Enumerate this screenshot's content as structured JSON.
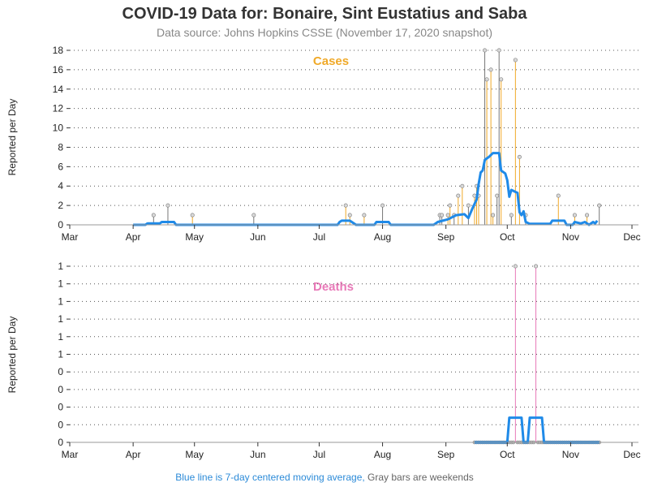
{
  "title": "COVID-19 Data for: Bonaire, Sint Eustatius and Saba",
  "subtitle": "Data source: Johns Hopkins CSSE (November 17, 2020 snapshot)",
  "footnote": {
    "blue": "Blue line is 7-day centered moving average,",
    "gray": " Gray bars are weekends"
  },
  "colors": {
    "cases": "#f0a928",
    "deaths": "#e879b8",
    "average": "#1f8ae8",
    "weekend": "#777777",
    "grid": "#555555"
  },
  "chart_data": [
    {
      "type": "line",
      "title": "Cases",
      "ylabel": "Reported per Day",
      "x_tick_labels": [
        "Mar",
        "Apr",
        "May",
        "Jun",
        "Jul",
        "Aug",
        "Sep",
        "Oct",
        "Nov",
        "Dec"
      ],
      "x_tick_dates": [
        "2020-03-01",
        "2020-04-01",
        "2020-05-01",
        "2020-06-01",
        "2020-07-01",
        "2020-08-01",
        "2020-09-01",
        "2020-10-01",
        "2020-11-01",
        "2020-12-01"
      ],
      "y_ticks": [
        "0",
        "2",
        "4",
        "6",
        "8",
        "10",
        "12",
        "14",
        "16",
        "18"
      ],
      "ylim": [
        0,
        18
      ],
      "series": [
        {
          "kind": "daily",
          "points": [
            {
              "date": "2020-04-11",
              "value": 1
            },
            {
              "date": "2020-04-18",
              "value": 2
            },
            {
              "date": "2020-04-30",
              "value": 1
            },
            {
              "date": "2020-05-30",
              "value": 1
            },
            {
              "date": "2020-07-14",
              "value": 2
            },
            {
              "date": "2020-07-16",
              "value": 1
            },
            {
              "date": "2020-07-23",
              "value": 1
            },
            {
              "date": "2020-08-01",
              "value": 2
            },
            {
              "date": "2020-08-29",
              "value": 1
            },
            {
              "date": "2020-08-30",
              "value": 1
            },
            {
              "date": "2020-09-02",
              "value": 1
            },
            {
              "date": "2020-09-03",
              "value": 2
            },
            {
              "date": "2020-09-05",
              "value": 1
            },
            {
              "date": "2020-09-07",
              "value": 3
            },
            {
              "date": "2020-09-09",
              "value": 4
            },
            {
              "date": "2020-09-12",
              "value": 2
            },
            {
              "date": "2020-09-15",
              "value": 3
            },
            {
              "date": "2020-09-16",
              "value": 4
            },
            {
              "date": "2020-09-17",
              "value": 3
            },
            {
              "date": "2020-09-20",
              "value": 18
            },
            {
              "date": "2020-09-21",
              "value": 15
            },
            {
              "date": "2020-09-23",
              "value": 16
            },
            {
              "date": "2020-09-24",
              "value": 1
            },
            {
              "date": "2020-09-26",
              "value": 3
            },
            {
              "date": "2020-09-27",
              "value": 18
            },
            {
              "date": "2020-09-28",
              "value": 15
            },
            {
              "date": "2020-10-03",
              "value": 1
            },
            {
              "date": "2020-10-05",
              "value": 17
            },
            {
              "date": "2020-10-07",
              "value": 7
            },
            {
              "date": "2020-10-10",
              "value": 1
            },
            {
              "date": "2020-10-26",
              "value": 3
            },
            {
              "date": "2020-11-03",
              "value": 1
            },
            {
              "date": "2020-11-09",
              "value": 1
            },
            {
              "date": "2020-11-15",
              "value": 2
            }
          ]
        },
        {
          "kind": "moving_average",
          "points": [
            {
              "date": "2020-04-01",
              "value": 0
            },
            {
              "date": "2020-04-07",
              "value": 0
            },
            {
              "date": "2020-04-08",
              "value": 0.14
            },
            {
              "date": "2020-04-14",
              "value": 0.14
            },
            {
              "date": "2020-04-15",
              "value": 0.29
            },
            {
              "date": "2020-04-21",
              "value": 0.29
            },
            {
              "date": "2020-04-22",
              "value": 0
            },
            {
              "date": "2020-07-10",
              "value": 0
            },
            {
              "date": "2020-07-11",
              "value": 0.29
            },
            {
              "date": "2020-07-12",
              "value": 0.43
            },
            {
              "date": "2020-07-16",
              "value": 0.43
            },
            {
              "date": "2020-07-18",
              "value": 0.14
            },
            {
              "date": "2020-07-19",
              "value": 0
            },
            {
              "date": "2020-07-28",
              "value": 0
            },
            {
              "date": "2020-07-29",
              "value": 0.29
            },
            {
              "date": "2020-08-04",
              "value": 0.29
            },
            {
              "date": "2020-08-05",
              "value": 0
            },
            {
              "date": "2020-08-26",
              "value": 0
            },
            {
              "date": "2020-08-28",
              "value": 0.29
            },
            {
              "date": "2020-09-02",
              "value": 0.57
            },
            {
              "date": "2020-09-06",
              "value": 1.0
            },
            {
              "date": "2020-09-10",
              "value": 1.1
            },
            {
              "date": "2020-09-12",
              "value": 0.7
            },
            {
              "date": "2020-09-14",
              "value": 1.7
            },
            {
              "date": "2020-09-16",
              "value": 2.6
            },
            {
              "date": "2020-09-17",
              "value": 4.2
            },
            {
              "date": "2020-09-18",
              "value": 5.4
            },
            {
              "date": "2020-09-19",
              "value": 5.6
            },
            {
              "date": "2020-09-20",
              "value": 6.7
            },
            {
              "date": "2020-09-22",
              "value": 7.0
            },
            {
              "date": "2020-09-24",
              "value": 7.4
            },
            {
              "date": "2020-09-27",
              "value": 7.4
            },
            {
              "date": "2020-09-28",
              "value": 5.6
            },
            {
              "date": "2020-09-30",
              "value": 5.3
            },
            {
              "date": "2020-10-01",
              "value": 4.6
            },
            {
              "date": "2020-10-02",
              "value": 2.9
            },
            {
              "date": "2020-10-03",
              "value": 3.6
            },
            {
              "date": "2020-10-06",
              "value": 3.3
            },
            {
              "date": "2020-10-07",
              "value": 1.3
            },
            {
              "date": "2020-10-08",
              "value": 1.0
            },
            {
              "date": "2020-10-09",
              "value": 1.4
            },
            {
              "date": "2020-10-10",
              "value": 0.3
            },
            {
              "date": "2020-10-12",
              "value": 0.1
            },
            {
              "date": "2020-10-22",
              "value": 0.1
            },
            {
              "date": "2020-10-23",
              "value": 0.43
            },
            {
              "date": "2020-10-29",
              "value": 0.43
            },
            {
              "date": "2020-10-30",
              "value": 0
            },
            {
              "date": "2020-11-02",
              "value": 0
            },
            {
              "date": "2020-11-03",
              "value": 0.29
            },
            {
              "date": "2020-11-06",
              "value": 0.14
            },
            {
              "date": "2020-11-08",
              "value": 0.29
            },
            {
              "date": "2020-11-10",
              "value": 0
            },
            {
              "date": "2020-11-12",
              "value": 0.29
            },
            {
              "date": "2020-11-13",
              "value": 0.14
            },
            {
              "date": "2020-11-14",
              "value": 0.43
            }
          ]
        }
      ]
    },
    {
      "type": "line",
      "title": "Deaths",
      "ylabel": "Reported per Day",
      "x_tick_labels": [
        "Mar",
        "Apr",
        "May",
        "Jun",
        "Jul",
        "Aug",
        "Sep",
        "Oct",
        "Nov",
        "Dec"
      ],
      "x_tick_dates": [
        "2020-03-01",
        "2020-04-01",
        "2020-05-01",
        "2020-06-01",
        "2020-07-01",
        "2020-08-01",
        "2020-09-01",
        "2020-10-01",
        "2020-11-01",
        "2020-12-01"
      ],
      "y_ticks": [
        "0",
        "0",
        "0",
        "0",
        "0",
        "1",
        "1",
        "1",
        "1",
        "1",
        "1"
      ],
      "ylim": [
        0,
        1
      ],
      "series": [
        {
          "kind": "daily",
          "zeros_from": "2020-09-15",
          "zeros_to": "2020-11-15",
          "points": [
            {
              "date": "2020-10-05",
              "value": 1
            },
            {
              "date": "2020-10-15",
              "value": 1
            }
          ]
        },
        {
          "kind": "moving_average",
          "points": [
            {
              "date": "2020-09-15",
              "value": 0
            },
            {
              "date": "2020-10-01",
              "value": 0
            },
            {
              "date": "2020-10-02",
              "value": 0.14
            },
            {
              "date": "2020-10-08",
              "value": 0.14
            },
            {
              "date": "2020-10-09",
              "value": 0
            },
            {
              "date": "2020-10-11",
              "value": 0
            },
            {
              "date": "2020-10-12",
              "value": 0.14
            },
            {
              "date": "2020-10-18",
              "value": 0.14
            },
            {
              "date": "2020-10-19",
              "value": 0
            },
            {
              "date": "2020-11-15",
              "value": 0
            }
          ]
        }
      ]
    }
  ]
}
